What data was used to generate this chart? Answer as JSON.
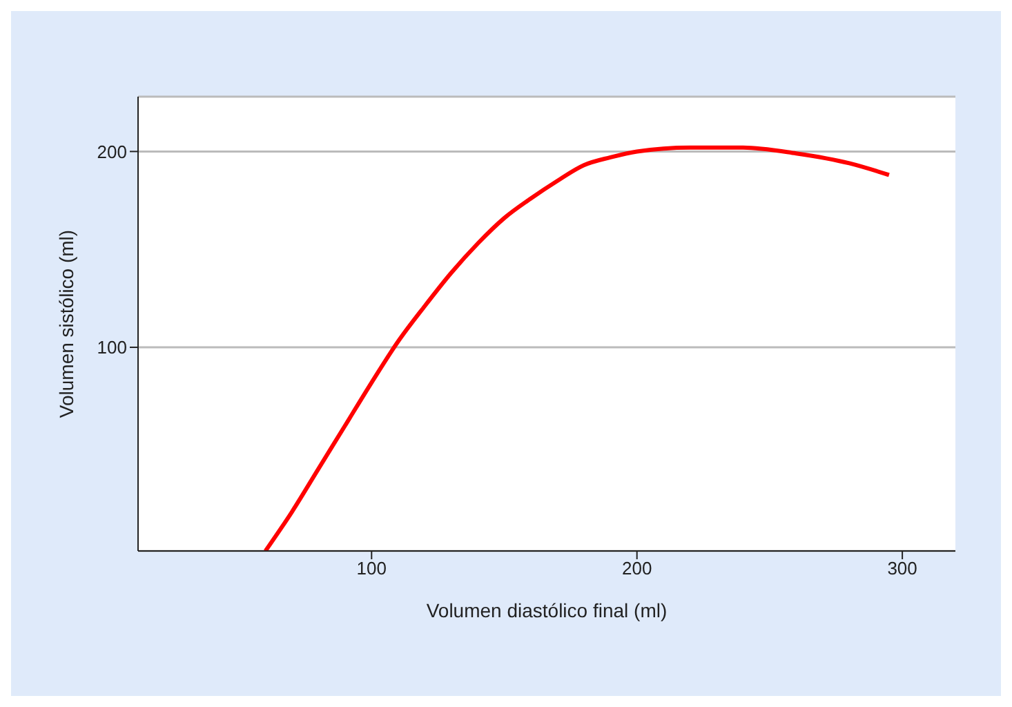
{
  "chart_data": {
    "type": "line",
    "xlabel": "Volumen diastólico final (ml)",
    "ylabel": "Volumen sistólico (ml)",
    "x": [
      60,
      70,
      80,
      90,
      100,
      110,
      120,
      130,
      140,
      150,
      160,
      170,
      180,
      190,
      200,
      220,
      240,
      260,
      280,
      295
    ],
    "series": [
      {
        "color": "#ff0000",
        "values": [
          -4,
          16,
          38,
          60,
          82,
          103,
          121,
          138,
          153,
          166,
          176,
          185,
          193,
          197,
          200,
          202,
          202,
          199,
          194,
          188
        ]
      }
    ],
    "xlim": [
      12,
      320
    ],
    "ylim": [
      -4,
      228
    ],
    "xticks": [
      100,
      200,
      300
    ],
    "yticks": [
      100,
      200
    ],
    "grid": "y",
    "legend": false,
    "marker": "none",
    "line_style": "solid"
  }
}
